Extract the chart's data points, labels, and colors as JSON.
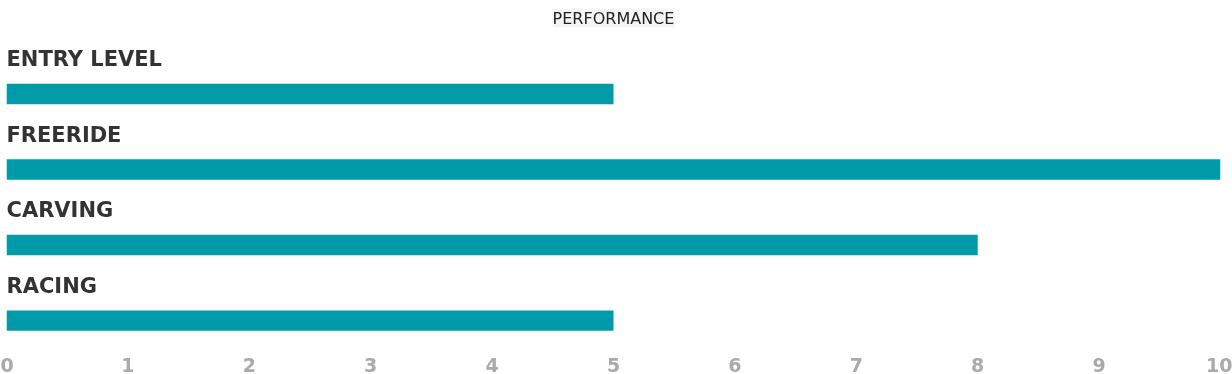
{
  "chart_data": {
    "type": "bar",
    "orientation": "horizontal",
    "title": "PERFORMANCE",
    "categories": [
      "ENTRY LEVEL",
      "FREERIDE",
      "CARVING",
      "RACING"
    ],
    "values": [
      5,
      10,
      8,
      5
    ],
    "color": "#009aa9",
    "xlim": [
      0,
      10
    ],
    "xticks": [
      0,
      1,
      2,
      3,
      4,
      5,
      6,
      7,
      8,
      9,
      10
    ],
    "grid": false
  }
}
